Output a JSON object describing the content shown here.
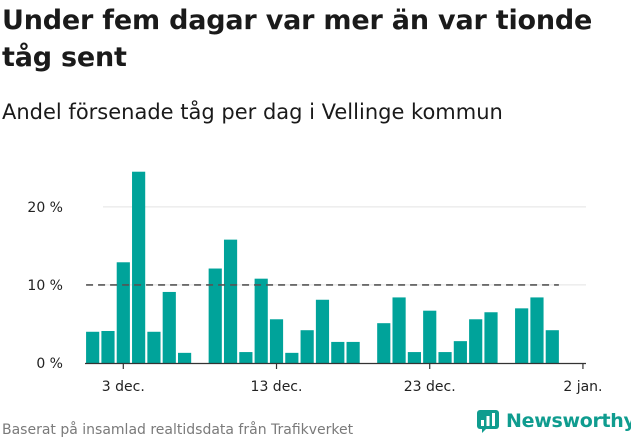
{
  "title": "Under fem dagar var mer än var tionde tåg sent",
  "subtitle": "Andel försenade tåg per dag i Vellinge kommun",
  "footer": "Baserat på insamlad realtidsdata från Trafikverket",
  "brand": "Newsworthy",
  "colors": {
    "bar": "#00a39a",
    "brand": "#0f9c8f",
    "reference_line": "#555555"
  },
  "chart_data": {
    "type": "bar",
    "title": "Under fem dagar var mer än var tionde tåg sent",
    "subtitle": "Andel försenade tåg per dag i Vellinge kommun",
    "xlabel": "",
    "ylabel": "",
    "ylim": [
      0,
      26
    ],
    "yticks": [
      0,
      10,
      20
    ],
    "ytick_labels": [
      "0 %",
      "10 %",
      "20 %"
    ],
    "xticks": [
      {
        "day": 3,
        "label": "3 dec."
      },
      {
        "day": 13,
        "label": "13 dec."
      },
      {
        "day": 23,
        "label": "23 dec."
      },
      {
        "day": 33,
        "label": "2 jan."
      }
    ],
    "reference_line": 10,
    "grid": "horizontal",
    "days": [
      1,
      2,
      3,
      4,
      5,
      6,
      7,
      8,
      9,
      10,
      11,
      12,
      13,
      14,
      15,
      16,
      17,
      18,
      19,
      20,
      21,
      22,
      23,
      24,
      25,
      26,
      27,
      28,
      29,
      30,
      31
    ],
    "values": [
      4.0,
      4.1,
      12.9,
      24.5,
      4.0,
      9.1,
      1.3,
      null,
      12.1,
      15.8,
      1.4,
      10.8,
      5.6,
      1.3,
      4.2,
      8.1,
      2.7,
      2.7,
      null,
      5.1,
      8.4,
      1.4,
      6.7,
      1.4,
      2.8,
      5.6,
      6.5,
      null,
      7.0,
      8.4,
      4.2
    ]
  }
}
